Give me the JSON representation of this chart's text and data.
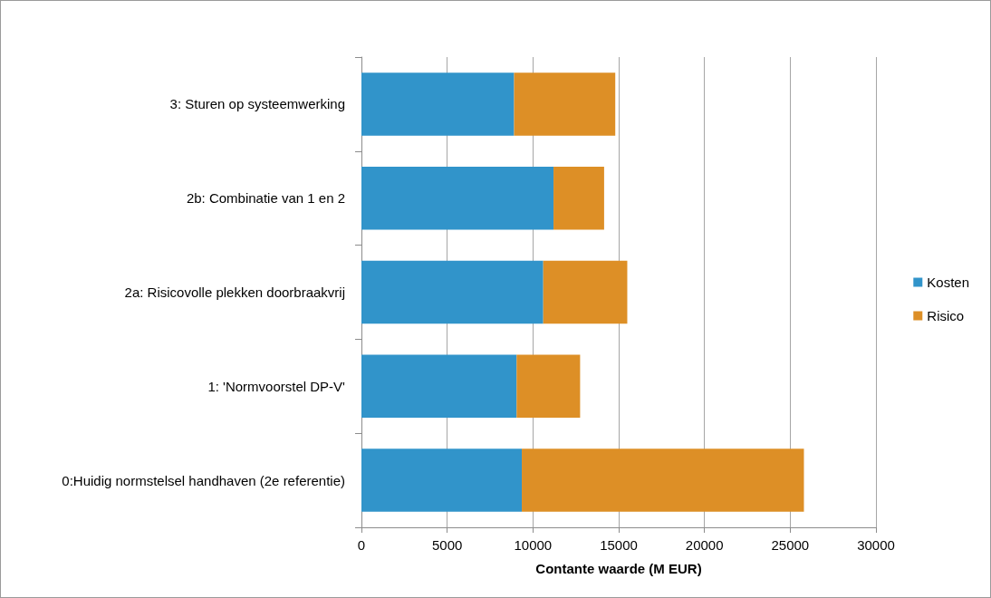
{
  "chart_data": {
    "type": "bar",
    "orientation": "horizontal",
    "stacked": true,
    "categories": [
      "3: Sturen op systeemwerking",
      "2b: Combinatie van 1 en 2",
      "2a: Risicovolle plekken doorbraakvrij",
      "1: 'Normvoorstel DP-V'",
      "0:Huidig normstelsel handhaven (2e referentie)"
    ],
    "series": [
      {
        "name": "Kosten",
        "color": "#3194ca",
        "values": [
          8900,
          11200,
          10600,
          9050,
          9350
        ]
      },
      {
        "name": "Risico",
        "color": "#dd8f26",
        "values": [
          5900,
          2950,
          4900,
          3700,
          16450
        ]
      }
    ],
    "xlabel": "Contante waarde (M EUR)",
    "xlim": [
      0,
      30000
    ],
    "xticks": [
      0,
      5000,
      10000,
      15000,
      20000,
      25000,
      30000
    ],
    "grid": "x",
    "legend": "right"
  }
}
